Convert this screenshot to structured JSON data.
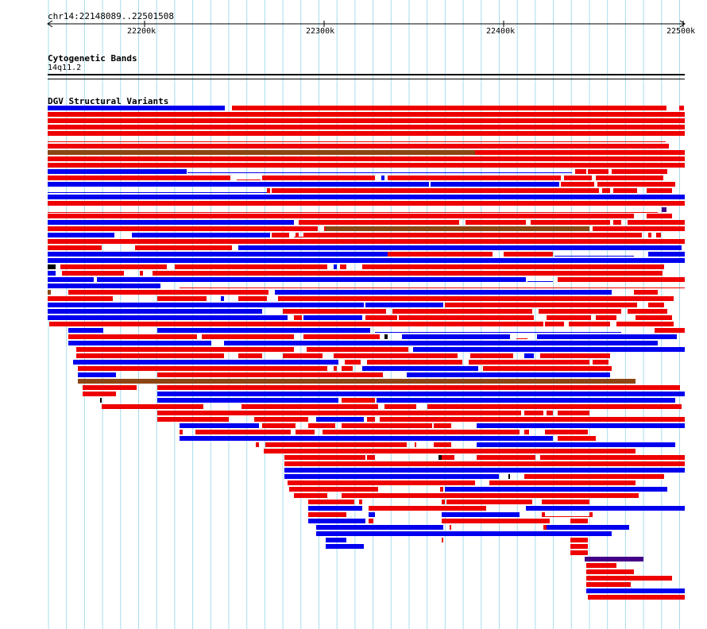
{
  "browser": {
    "location_label": "chr14:22148089..22501508",
    "ruler": {
      "ticks": [
        "22200k",
        "22300k",
        "22400k",
        "22500k"
      ]
    }
  },
  "tracks": {
    "cytoband": {
      "title": "Cytogenetic Bands",
      "band_label": "14q11.2"
    },
    "dgv": {
      "title": "DGV Structural Variants",
      "colors": {
        "gain": "#0000ee",
        "loss": "#ee0000",
        "inversion_or_complex": "#8b4513",
        "otherx": "#440088"
      }
    }
  }
}
